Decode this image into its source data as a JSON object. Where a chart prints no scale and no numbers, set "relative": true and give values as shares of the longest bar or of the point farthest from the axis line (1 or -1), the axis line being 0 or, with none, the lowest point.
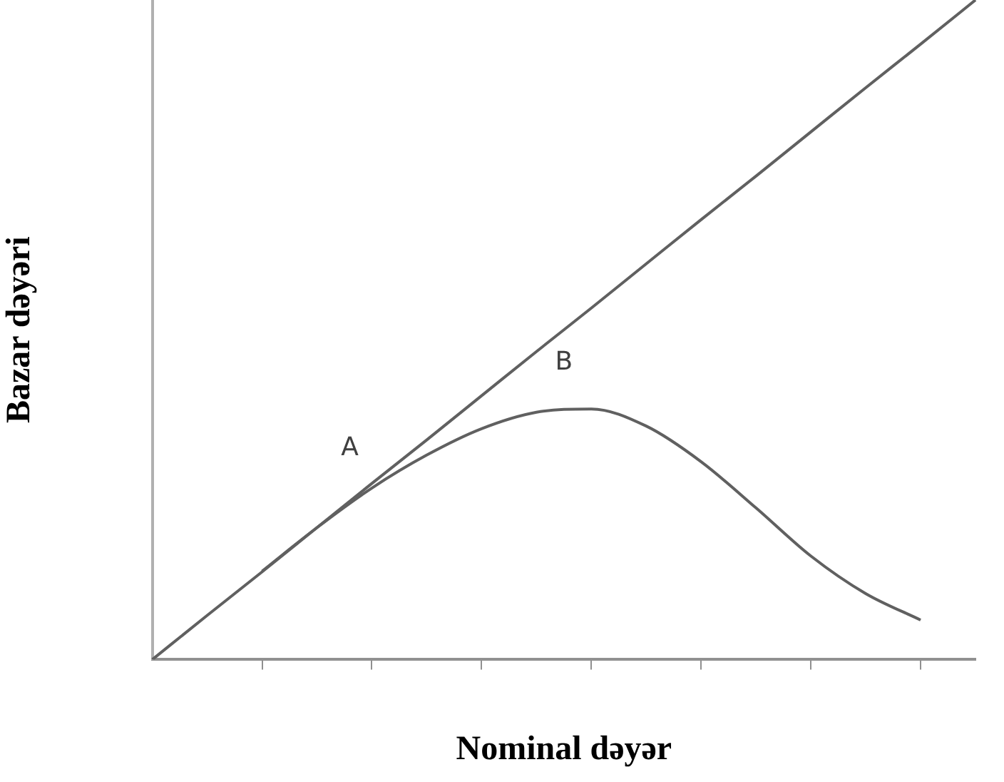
{
  "chart_data": {
    "type": "line",
    "relative": true,
    "xlabel": "Nominal dəyər",
    "ylabel": "Bazar dəyəri",
    "categories": [
      null,
      null,
      null,
      null,
      null,
      null,
      null,
      null,
      null,
      null,
      null,
      null,
      null,
      null,
      null,
      null
    ],
    "series": [
      {
        "color": "#606060",
        "values": [
          0,
          0.067,
          0.133,
          0.2,
          0.267,
          0.333,
          0.4,
          0.467,
          0.533,
          0.6,
          0.667,
          0.733,
          0.8,
          0.867,
          0.933,
          1
        ]
      },
      {
        "color": "#606060",
        "values": [
          null,
          null,
          0.134,
          0.2,
          0.26,
          0.31,
          0.35,
          0.375,
          0.38,
          0.354,
          0.3,
          0.23,
          0.157,
          0.1,
          0.06,
          null
        ]
      }
    ],
    "annotations": [
      "A",
      "B"
    ],
    "tick_labels": false,
    "legend": false,
    "grid": false,
    "marker": "none"
  }
}
